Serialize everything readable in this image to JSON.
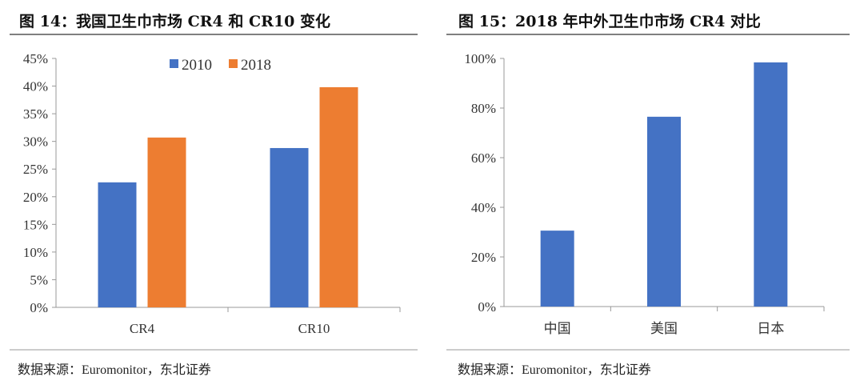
{
  "colors": {
    "2010": "#4472C4",
    "2018": "#ED7D31",
    "bar": "#4472C4"
  },
  "chart_data": [
    {
      "type": "bar",
      "title": "图 14：我国卫生巾市场 CR4 和 CR10 变化",
      "categories": [
        "CR4",
        "CR10"
      ],
      "series": [
        {
          "name": "2010",
          "values": [
            0.226,
            0.288
          ]
        },
        {
          "name": "2018",
          "values": [
            0.307,
            0.398
          ]
        }
      ],
      "ylim": [
        0,
        0.45
      ],
      "yticks": [
        "0%",
        "5%",
        "10%",
        "15%",
        "20%",
        "25%",
        "30%",
        "35%",
        "40%",
        "45%"
      ],
      "legend": "top-center",
      "grid": false,
      "source": "数据来源：Euromonitor，东北证券"
    },
    {
      "type": "bar",
      "title": "图 15：2018 年中外卫生巾市场 CR4 对比",
      "categories": [
        "中国",
        "美国",
        "日本"
      ],
      "values": [
        0.306,
        0.765,
        0.984
      ],
      "ylim": [
        0,
        1.0
      ],
      "yticks": [
        "0%",
        "20%",
        "40%",
        "60%",
        "80%",
        "100%"
      ],
      "grid": false,
      "source": "数据来源：Euromonitor，东北证券"
    }
  ]
}
